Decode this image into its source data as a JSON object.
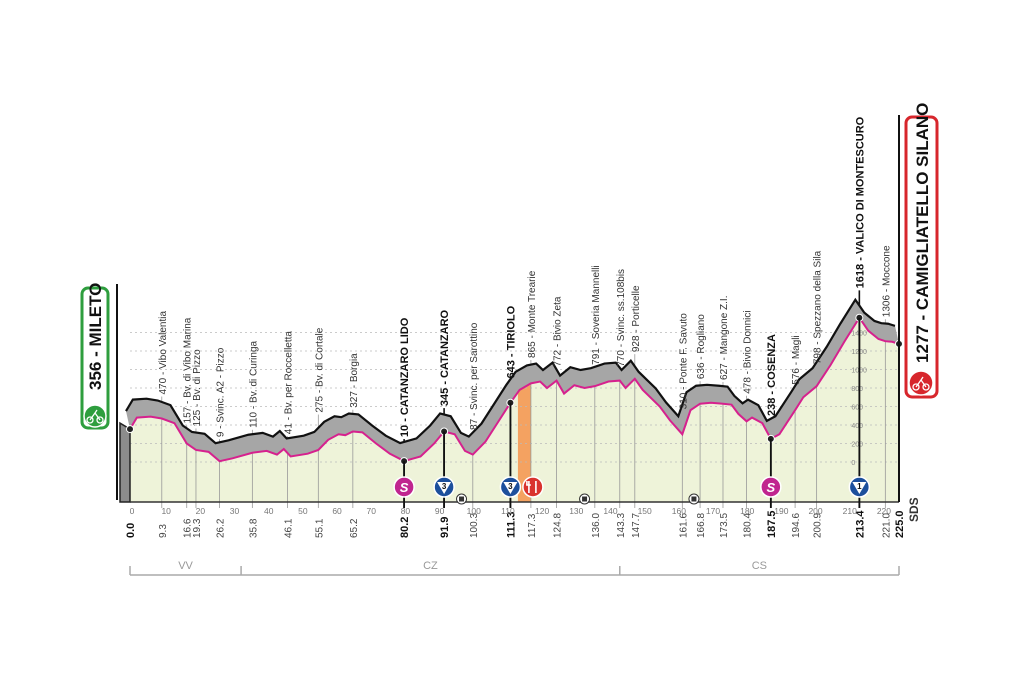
{
  "chart_data": {
    "type": "area",
    "xlabel": "",
    "ylabel": "",
    "xlim": [
      0,
      225
    ],
    "ylim": [
      0,
      1618
    ],
    "grid": "dotted horizontal every 200 m",
    "colors": {
      "profile_line": "#d6218e",
      "fill": "#eef3d9",
      "shade": "#a6a6a6",
      "sprint": "#c0258f",
      "kom": "#1c4f9c",
      "feed": "#d9322e",
      "feed_zone": "#f4a261",
      "start": "#2e9e3e",
      "finish": "#d7262c"
    },
    "x_ticks": [
      0,
      10,
      20,
      30,
      40,
      50,
      60,
      70,
      80,
      90,
      100,
      110,
      120,
      130,
      140,
      150,
      160,
      170,
      180,
      190,
      200,
      210,
      220
    ],
    "altitude_scale": [
      0,
      200,
      400,
      600,
      800,
      1000,
      1200,
      1400
    ],
    "start": {
      "km": 0.0,
      "elevation": 356,
      "label": "356 - MILETO",
      "icon": "bike-icon"
    },
    "finish": {
      "km": 225.0,
      "elevation": 1277,
      "label": "1277 - CAMIGLIATELLO SILANO",
      "icon": "bike-finish-icon"
    },
    "waypoints": [
      {
        "km": "0.0",
        "elev": 356,
        "label": "",
        "bold": true
      },
      {
        "km": "9.3",
        "elev": 470,
        "label": "470 - Vibo Valentia",
        "bold": false
      },
      {
        "km": "16.6",
        "elev": 157,
        "label": "157 - Bv. di Vibo Marina",
        "bold": false
      },
      {
        "km": "19.3",
        "elev": 125,
        "label": "125 - Bv. di Pizzo",
        "bold": false
      },
      {
        "km": "26.2",
        "elev": 9,
        "label": "9 - Svinc. A2 - Pizzo",
        "bold": false
      },
      {
        "km": "35.8",
        "elev": 110,
        "label": "110 - Bv. di Curinga",
        "bold": false
      },
      {
        "km": "46.1",
        "elev": 41,
        "label": "41 - Bv. per Roccelletta",
        "bold": false
      },
      {
        "km": "55.1",
        "elev": 275,
        "label": "275 - Bv. di Cortale",
        "bold": false
      },
      {
        "km": "65.2",
        "elev": 327,
        "label": "327 - Borgia",
        "bold": false
      },
      {
        "km": "80.2",
        "elev": 10,
        "label": "10 - CATANZARO LIDO",
        "bold": true
      },
      {
        "km": "91.9",
        "elev": 345,
        "label": "345 - CATANZARO",
        "bold": true
      },
      {
        "km": "100.3",
        "elev": 87,
        "label": "87 - Svinc. per Sarottino",
        "bold": false
      },
      {
        "km": "111.3",
        "elev": 643,
        "label": "643 - TIRIOLO",
        "bold": true
      },
      {
        "km": "117.3",
        "elev": 865,
        "label": "865 - Monte Trearie",
        "bold": false
      },
      {
        "km": "124.8",
        "elev": 772,
        "label": "772 - Bivio Zeta",
        "bold": false
      },
      {
        "km": "136.0",
        "elev": 791,
        "label": "791 - Soveria Mannelli",
        "bold": false
      },
      {
        "km": "143.3",
        "elev": 770,
        "label": "770 - Svinc. ss.108bis",
        "bold": false
      },
      {
        "km": "147.7",
        "elev": 928,
        "label": "928 - Porticelle",
        "bold": false
      },
      {
        "km": "161.6",
        "elev": 310,
        "label": "310 - Ponte F. Savuto",
        "bold": false
      },
      {
        "km": "166.8",
        "elev": 636,
        "label": "636 - Rogliano",
        "bold": false
      },
      {
        "km": "173.5",
        "elev": 627,
        "label": "627 - Mangone Z.I.",
        "bold": false
      },
      {
        "km": "180.4",
        "elev": 478,
        "label": "478 - Bivio Donnici",
        "bold": false
      },
      {
        "km": "187.5",
        "elev": 238,
        "label": "238 - COSENZA",
        "bold": true
      },
      {
        "km": "194.6",
        "elev": 576,
        "label": "576 - Magli",
        "bold": false
      },
      {
        "km": "200.9",
        "elev": 798,
        "label": "798 - Spezzano della Sila",
        "bold": false
      },
      {
        "km": "213.4",
        "elev": 1618,
        "label": "1618 - VALICO DI MONTESCURO",
        "bold": true
      },
      {
        "km": "221.0",
        "elev": 1306,
        "label": "1306 - Moccone",
        "bold": false
      },
      {
        "km": "225.0",
        "elev": 1277,
        "label": "",
        "bold": true
      }
    ],
    "profile": [
      [
        0,
        356
      ],
      [
        2,
        480
      ],
      [
        6,
        490
      ],
      [
        9.3,
        470
      ],
      [
        13,
        420
      ],
      [
        16.6,
        200
      ],
      [
        19.3,
        130
      ],
      [
        23,
        110
      ],
      [
        26.2,
        9
      ],
      [
        30,
        40
      ],
      [
        35.8,
        100
      ],
      [
        40,
        120
      ],
      [
        43,
        80
      ],
      [
        45,
        140
      ],
      [
        47,
        60
      ],
      [
        52,
        90
      ],
      [
        55.1,
        130
      ],
      [
        58,
        240
      ],
      [
        61,
        300
      ],
      [
        63,
        290
      ],
      [
        65.2,
        330
      ],
      [
        68,
        320
      ],
      [
        72,
        200
      ],
      [
        76,
        90
      ],
      [
        80.2,
        10
      ],
      [
        85,
        60
      ],
      [
        89,
        200
      ],
      [
        91.9,
        330
      ],
      [
        95,
        300
      ],
      [
        98,
        120
      ],
      [
        100.3,
        80
      ],
      [
        104,
        220
      ],
      [
        108,
        450
      ],
      [
        111.3,
        640
      ],
      [
        114,
        780
      ],
      [
        117.3,
        850
      ],
      [
        120,
        870
      ],
      [
        122,
        800
      ],
      [
        124.8,
        880
      ],
      [
        127,
        740
      ],
      [
        130,
        830
      ],
      [
        133,
        800
      ],
      [
        136,
        820
      ],
      [
        140,
        870
      ],
      [
        143.3,
        880
      ],
      [
        145,
        800
      ],
      [
        147.7,
        900
      ],
      [
        150,
        780
      ],
      [
        155,
        600
      ],
      [
        158,
        450
      ],
      [
        161.6,
        300
      ],
      [
        164,
        560
      ],
      [
        166.8,
        630
      ],
      [
        170,
        640
      ],
      [
        173.5,
        630
      ],
      [
        176,
        620
      ],
      [
        178,
        520
      ],
      [
        180.4,
        440
      ],
      [
        182,
        480
      ],
      [
        185,
        420
      ],
      [
        187.5,
        250
      ],
      [
        190,
        300
      ],
      [
        194.6,
        560
      ],
      [
        197,
        700
      ],
      [
        200.9,
        820
      ],
      [
        205,
        1050
      ],
      [
        209,
        1300
      ],
      [
        213.4,
        1560
      ],
      [
        216,
        1420
      ],
      [
        219,
        1330
      ],
      [
        221,
        1306
      ],
      [
        223,
        1300
      ],
      [
        225,
        1277
      ]
    ],
    "markers": [
      {
        "km": 80.2,
        "type": "sprint",
        "label": "S"
      },
      {
        "km": 91.9,
        "type": "kom",
        "label": "3"
      },
      {
        "km": 111.3,
        "type": "kom",
        "label": "3"
      },
      {
        "km": 117.3,
        "type": "feed",
        "label": "feed"
      },
      {
        "km": 187.5,
        "type": "sprint",
        "label": "S"
      },
      {
        "km": 213.4,
        "type": "kom",
        "label": "1"
      }
    ],
    "feed_zone": [
      113.5,
      117.3
    ],
    "small_icons": [
      {
        "km": 97,
        "name": "tunnel-icon"
      },
      {
        "km": 133,
        "name": "level-crossing-icon"
      },
      {
        "km": 165,
        "name": "level-crossing-icon"
      }
    ],
    "regions": [
      {
        "label": "VV",
        "from": 0,
        "to": 32.5
      },
      {
        "label": "CZ",
        "from": 32.5,
        "to": 143.3
      },
      {
        "label": "CS",
        "from": 143.3,
        "to": 225
      }
    ],
    "logo": "SDS"
  }
}
